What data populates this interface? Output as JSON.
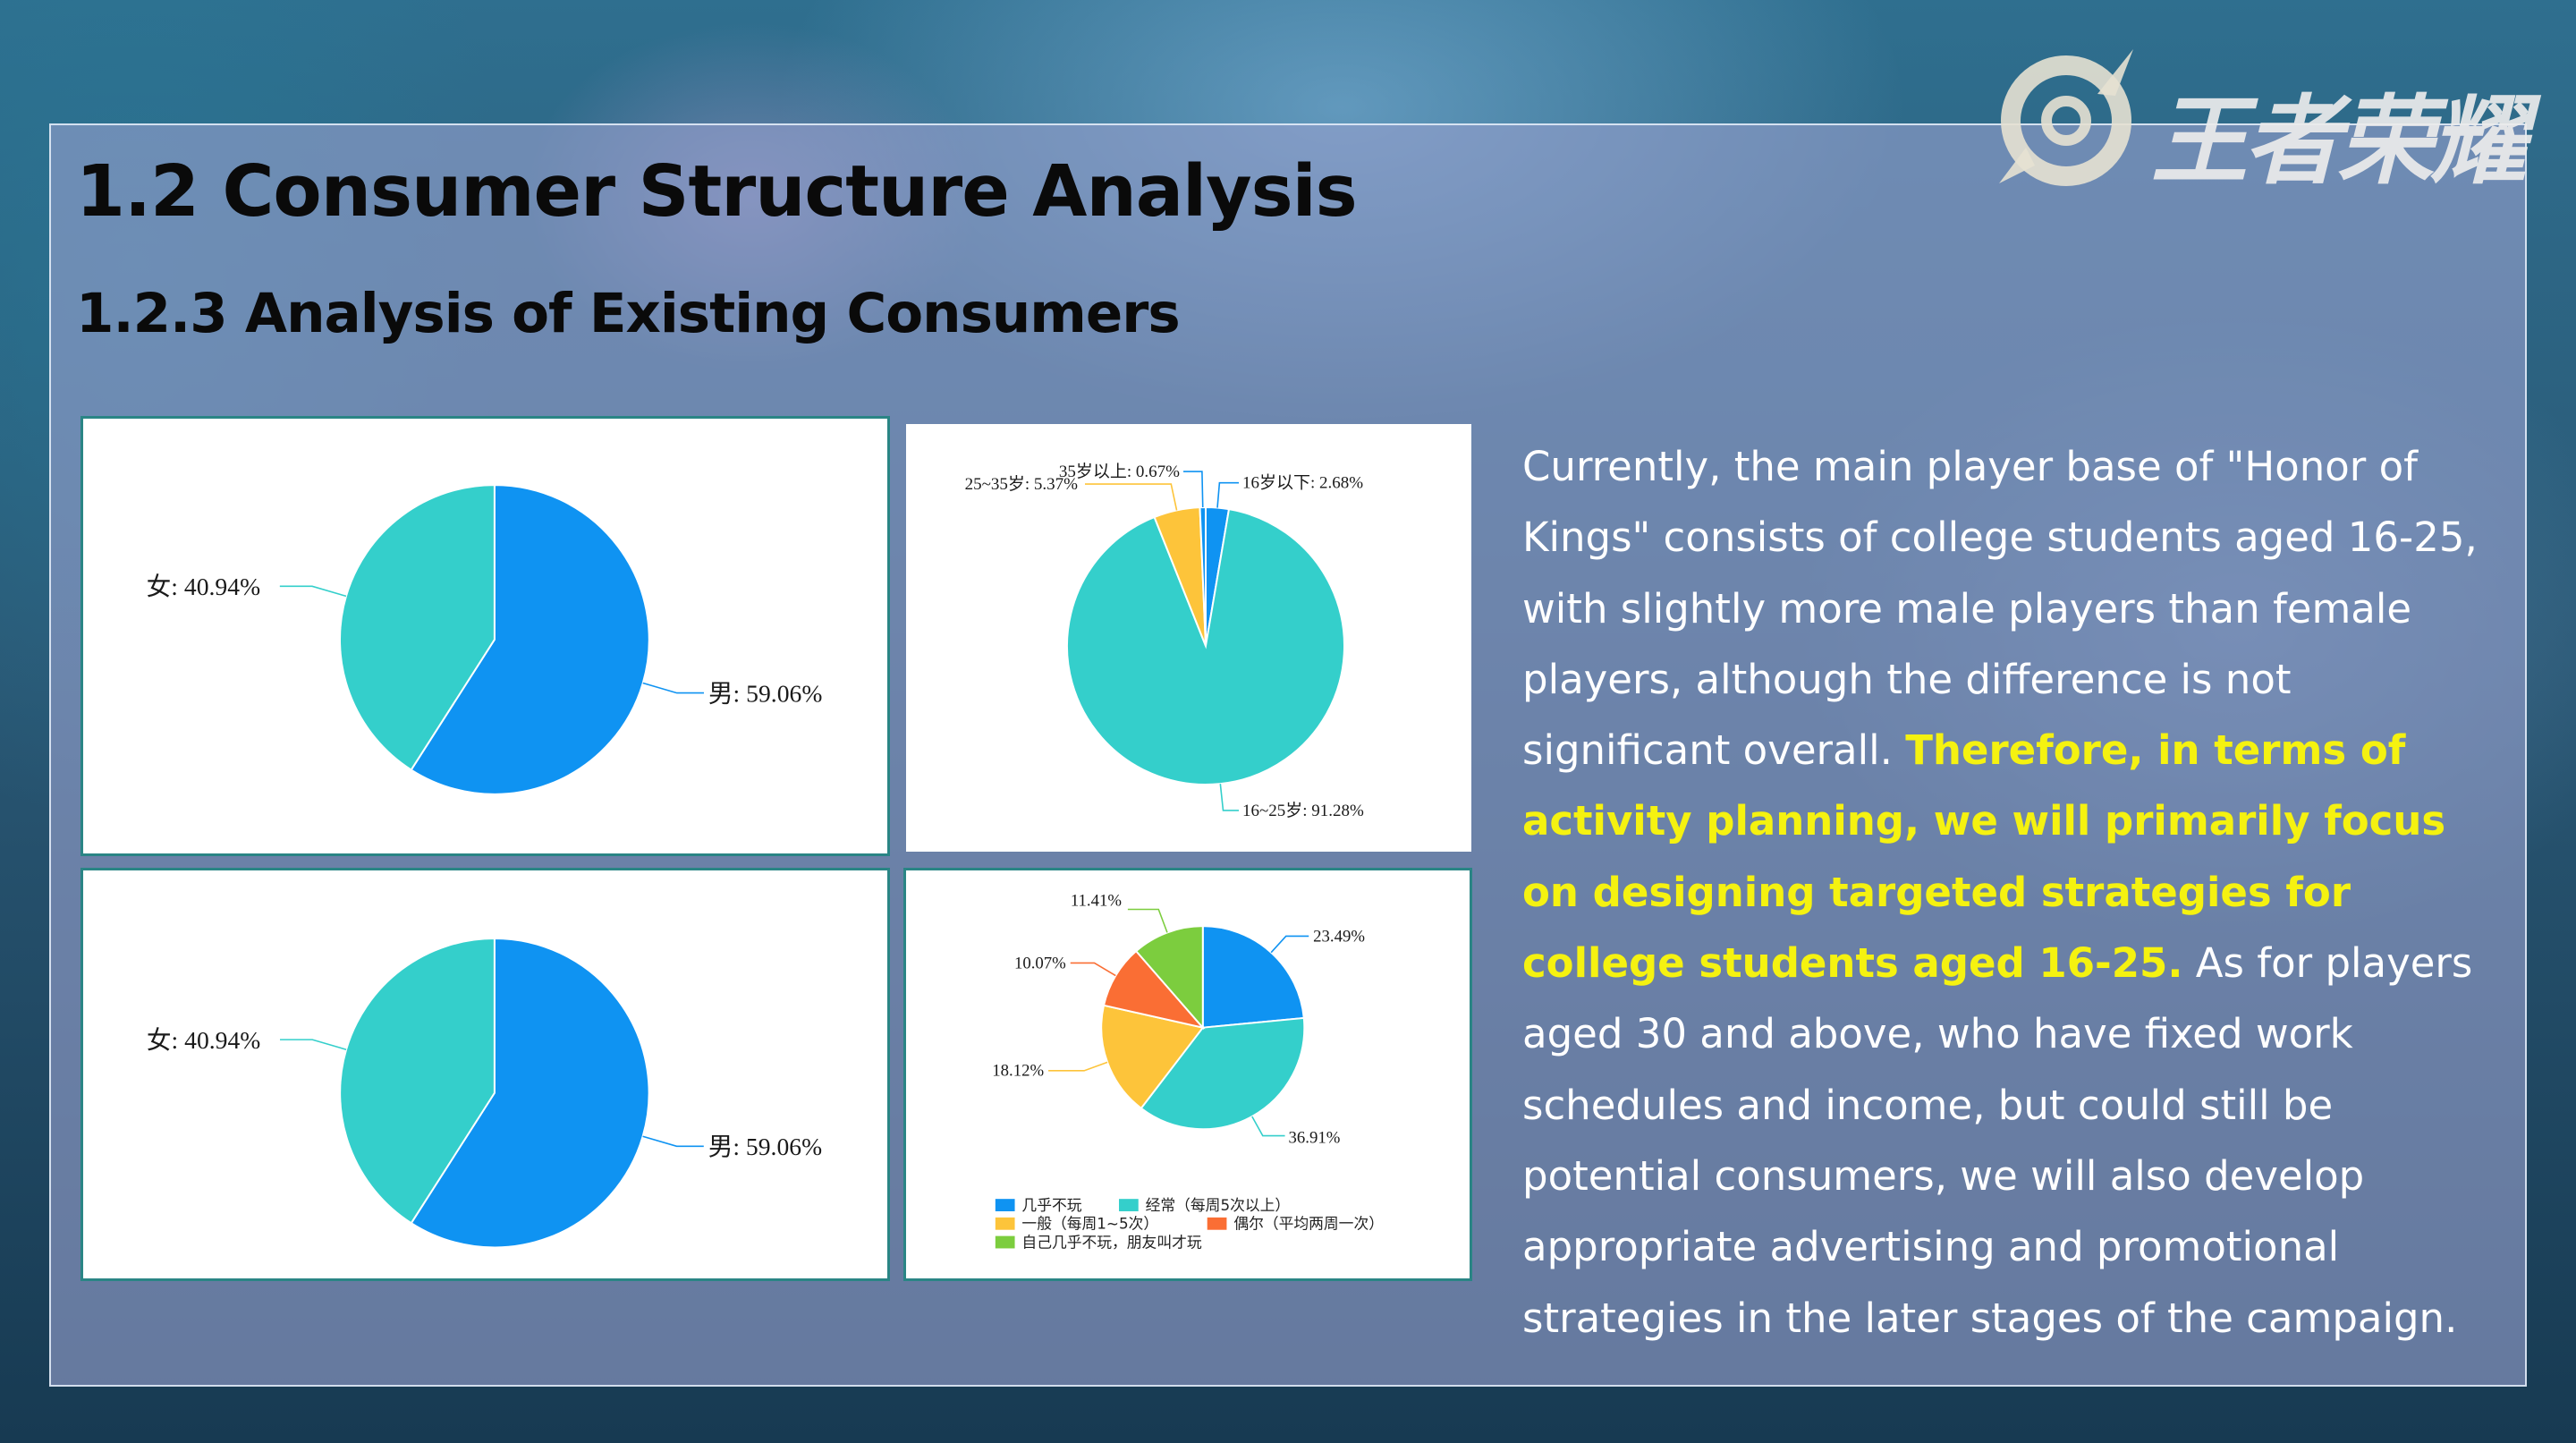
{
  "header": {
    "title": "1.2 Consumer Structure Analysis",
    "subtitle": "1.2.3 Analysis of Existing Consumers",
    "logo_text": "王者荣耀"
  },
  "description": {
    "part1": "Currently, the main player base of \"Honor of Kings\" consists of college students aged 16-25, with slightly more male players than female players, although the difference is not significant overall. ",
    "highlight": "Therefore, in terms of activity planning, we will primarily focus on designing targeted strategies for college students aged 16-25.",
    "part2": " As for players aged 30 and above, who have fixed work schedules and income, but could still be potential consumers, we will also develop appropriate advertising and promotional strategies in the later stages of the campaign."
  },
  "colors": {
    "blue": "#0f93f2",
    "teal": "#34cfcb",
    "yellow": "#fdc43a",
    "orange": "#fa6e34",
    "green": "#7ccd3e",
    "highlight": "#f5f210"
  },
  "chart_data": [
    {
      "type": "pie",
      "labels": [
        "男",
        "女"
      ],
      "values": [
        59.06,
        40.94
      ],
      "data_labels": [
        "男: 59.06%",
        "女: 40.94%"
      ]
    },
    {
      "type": "pie",
      "labels": [
        "16岁以下",
        "16~25岁",
        "25~35岁",
        "35岁以上"
      ],
      "values": [
        2.68,
        91.28,
        5.37,
        0.67
      ],
      "data_labels": [
        "16岁以下: 2.68%",
        "16~25岁: 91.28%",
        "25~35岁: 5.37%",
        "35岁以上: 0.67%"
      ]
    },
    {
      "type": "pie",
      "labels": [
        "男",
        "女"
      ],
      "values": [
        59.06,
        40.94
      ],
      "data_labels": [
        "男: 59.06%",
        "女: 40.94%"
      ]
    },
    {
      "type": "pie",
      "labels": [
        "几乎不玩",
        "经常（每周5次以上）",
        "一般（每周1~5次）",
        "偶尔（平均两周一次）",
        "自己几乎不玩，朋友叫才玩"
      ],
      "values": [
        23.49,
        36.91,
        18.12,
        10.07,
        11.41
      ],
      "data_labels": [
        "23.49%",
        "36.91%",
        "18.12%",
        "10.07%",
        "11.41%"
      ],
      "legend_position": "bottom"
    }
  ]
}
